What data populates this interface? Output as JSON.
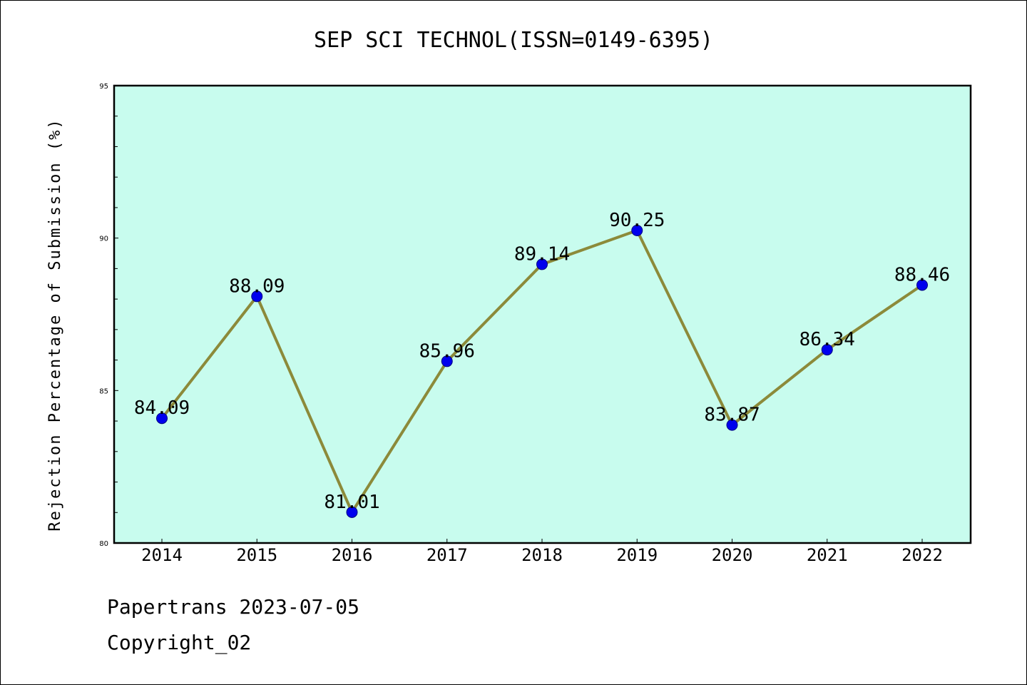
{
  "chart_data": {
    "type": "line",
    "title": "SEP SCI TECHNOL(ISSN=0149-6395)",
    "xlabel": "",
    "ylabel": "Rejection Percentage of Submission (%)",
    "categories": [
      "2014",
      "2015",
      "2016",
      "2017",
      "2018",
      "2019",
      "2020",
      "2021",
      "2022"
    ],
    "values": [
      84.09,
      88.09,
      81.01,
      85.96,
      89.14,
      90.25,
      83.87,
      86.34,
      88.46
    ],
    "data_labels": [
      "84.09",
      "88.09",
      "81.01",
      "85.96",
      "89.14",
      "90.25",
      "83.87",
      "86.34",
      "88.46"
    ],
    "ylim": [
      80,
      95
    ],
    "yticks": [
      "80",
      "85",
      "90",
      "95"
    ],
    "grid": false,
    "legend": "none",
    "colors": {
      "plot_background": "#c8fcee",
      "line": "#8c8a3a",
      "marker": "#0000ee"
    }
  },
  "footer": {
    "line1": "Papertrans 2023-07-05",
    "line2": "Copyright_02"
  }
}
